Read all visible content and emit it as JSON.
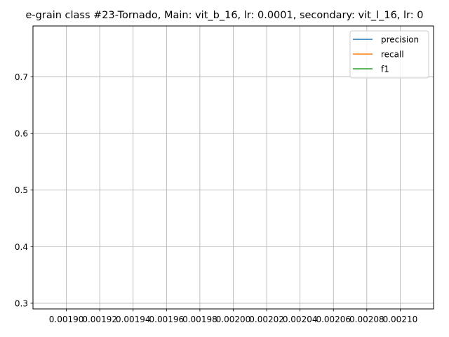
{
  "chart_data": {
    "type": "line",
    "title": "e-grain class #23-Tornado, Main: vit_b_16, lr: 0.0001, secondary: vit_l_16, lr: 0",
    "xlabel": "",
    "ylabel": "",
    "xlim": [
      0.00188,
      0.00212
    ],
    "ylim": [
      0.29,
      0.79
    ],
    "x_ticks": [
      0.0019,
      0.00192,
      0.00194,
      0.00196,
      0.00198,
      0.002,
      0.00202,
      0.00204,
      0.00206,
      0.00208,
      0.0021
    ],
    "x_tick_labels": [
      "0.00190",
      "0.00192",
      "0.00194",
      "0.00196",
      "0.00198",
      "0.00200",
      "0.00202",
      "0.00204",
      "0.00206",
      "0.00208",
      "0.00210"
    ],
    "x_tick_labels_text": [
      "0.00190",
      "0.00192",
      "0.00194",
      "0.00196",
      "0.00198",
      "0.00200",
      "0.00202",
      "0.00204",
      "0.00206",
      "0.00208",
      "0.00210"
    ],
    "y_ticks": [
      0.3,
      0.4,
      0.5,
      0.6,
      0.7
    ],
    "y_tick_labels": [
      "0.3",
      "0.4",
      "0.5",
      "0.6",
      "0.7"
    ],
    "grid": true,
    "legend_position": "top-right",
    "series": [
      {
        "name": "precision",
        "color": "#1f77b4",
        "x": [],
        "values": []
      },
      {
        "name": "recall",
        "color": "#ff7f0e",
        "x": [],
        "values": []
      },
      {
        "name": "f1",
        "color": "#2ca02c",
        "x": [],
        "values": []
      }
    ]
  }
}
